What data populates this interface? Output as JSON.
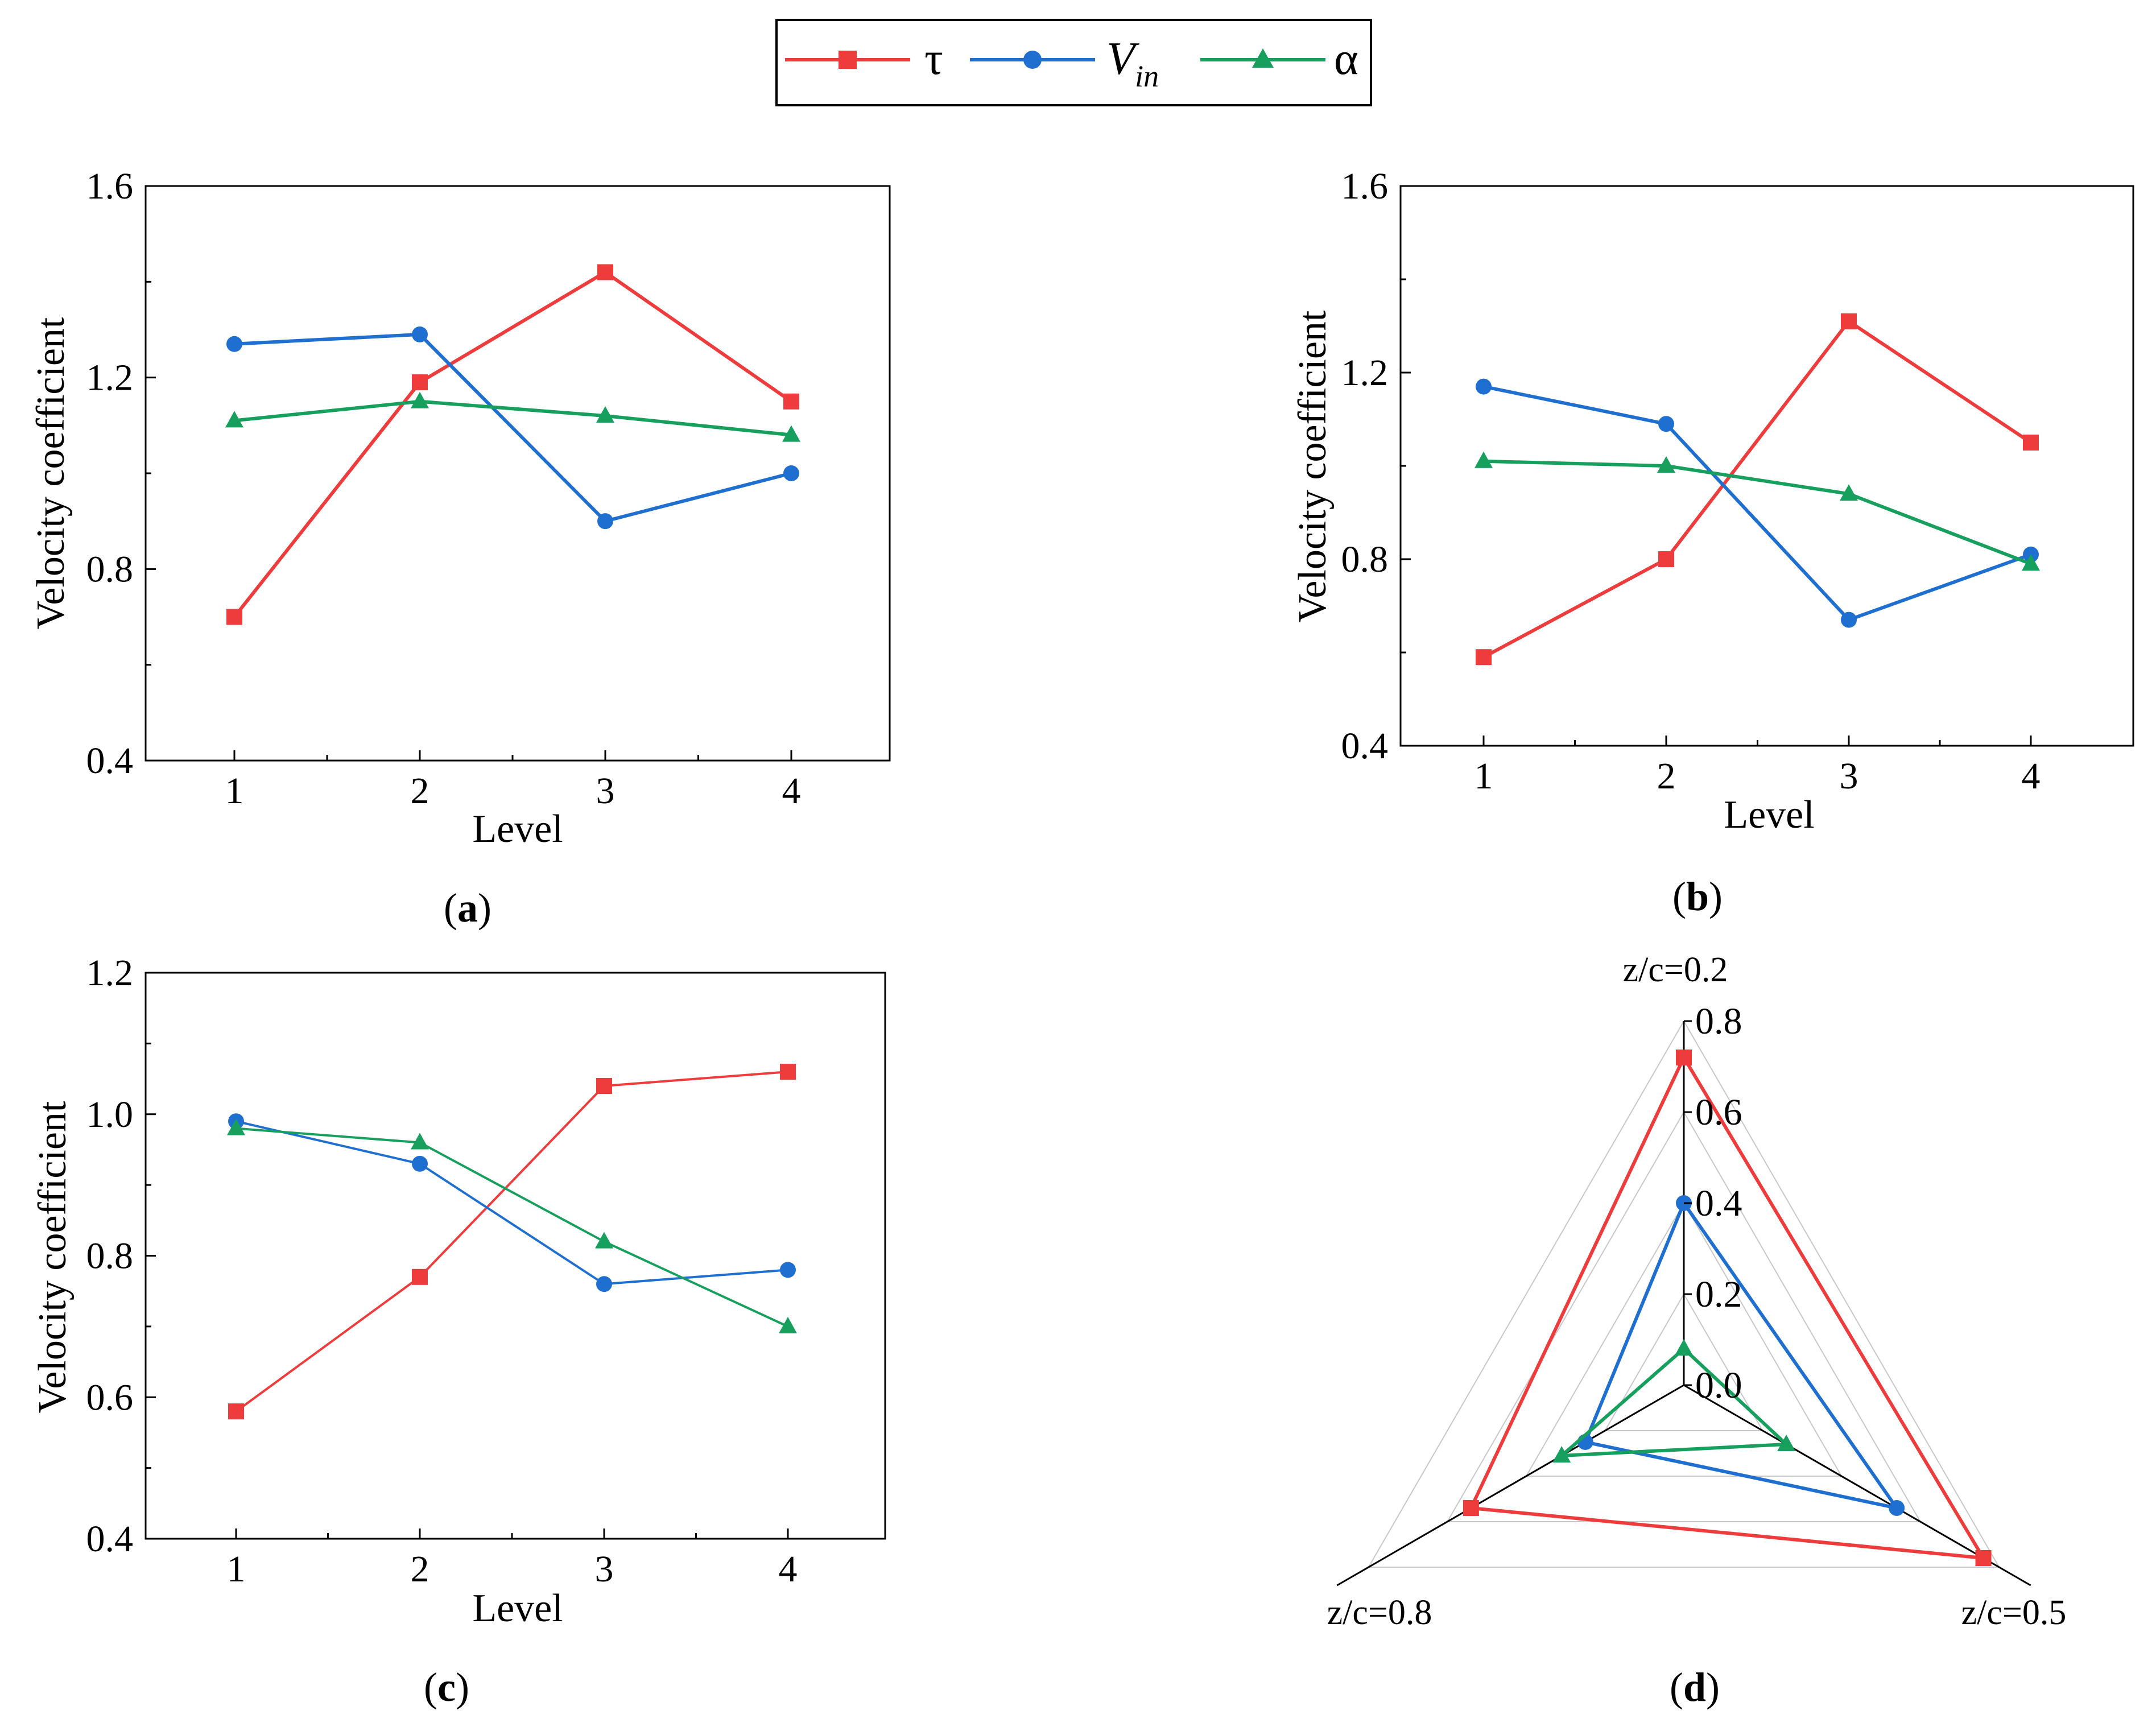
{
  "legend": {
    "entries": [
      {
        "key": "tau",
        "label": "τ",
        "color": "#ee3b3b",
        "marker": "square"
      },
      {
        "key": "vin",
        "label_main": "V",
        "label_sub": "in",
        "color": "#1f6fd0",
        "marker": "circle"
      },
      {
        "key": "alpha",
        "label": "α",
        "color": "#17a05d",
        "marker": "triangle"
      }
    ]
  },
  "chart_data": [
    {
      "id": "a",
      "type": "line",
      "panel_label": "a",
      "xlabel": "Level",
      "ylabel": "Velocity coefficient",
      "categories": [
        "1",
        "2",
        "3",
        "4"
      ],
      "ylim": [
        0.4,
        1.6
      ],
      "yticks": [
        "0.4",
        "0.8",
        "1.2",
        "1.6"
      ],
      "series": [
        {
          "name": "τ",
          "key": "tau",
          "values": [
            0.7,
            1.19,
            1.42,
            1.15
          ]
        },
        {
          "name": "Vin",
          "key": "vin",
          "values": [
            1.27,
            1.29,
            0.9,
            1.0
          ]
        },
        {
          "name": "α",
          "key": "alpha",
          "values": [
            1.11,
            1.15,
            1.12,
            1.08
          ]
        }
      ]
    },
    {
      "id": "b",
      "type": "line",
      "panel_label": "b",
      "xlabel": "Level",
      "ylabel": "Velocity coefficient",
      "categories": [
        "1",
        "2",
        "3",
        "4"
      ],
      "ylim": [
        0.4,
        1.6
      ],
      "yticks": [
        "0.4",
        "0.8",
        "1.2",
        "1.6"
      ],
      "series": [
        {
          "name": "τ",
          "key": "tau",
          "values": [
            0.59,
            0.8,
            1.31,
            1.05
          ]
        },
        {
          "name": "Vin",
          "key": "vin",
          "values": [
            1.17,
            1.09,
            0.67,
            0.81
          ]
        },
        {
          "name": "α",
          "key": "alpha",
          "values": [
            1.01,
            1.0,
            0.94,
            0.79
          ]
        }
      ]
    },
    {
      "id": "c",
      "type": "line",
      "panel_label": "c",
      "xlabel": "Level",
      "ylabel": "Velocity coefficient",
      "categories": [
        "1",
        "2",
        "3",
        "4"
      ],
      "ylim": [
        0.4,
        1.2
      ],
      "yticks": [
        "0.4",
        "0.6",
        "0.8",
        "1.0",
        "1.2"
      ],
      "series": [
        {
          "name": "τ",
          "key": "tau",
          "values": [
            0.58,
            0.77,
            1.04,
            1.06
          ]
        },
        {
          "name": "Vin",
          "key": "vin",
          "values": [
            0.99,
            0.93,
            0.76,
            0.78
          ]
        },
        {
          "name": "α",
          "key": "alpha",
          "values": [
            0.98,
            0.96,
            0.82,
            0.7
          ]
        }
      ]
    },
    {
      "id": "d",
      "type": "radar",
      "panel_label": "d",
      "axes": [
        "z/c=0.2",
        "z/c=0.5",
        "z/c=0.8"
      ],
      "rlim": [
        0,
        0.8
      ],
      "rticks": [
        "0.0",
        "0.2",
        "0.4",
        "0.6",
        "0.8"
      ],
      "series": [
        {
          "name": "τ",
          "key": "tau",
          "values": [
            0.72,
            0.76,
            0.54
          ]
        },
        {
          "name": "Vin",
          "key": "vin",
          "values": [
            0.4,
            0.54,
            0.25
          ]
        },
        {
          "name": "α",
          "key": "alpha",
          "values": [
            0.08,
            0.26,
            0.31
          ]
        }
      ]
    }
  ]
}
